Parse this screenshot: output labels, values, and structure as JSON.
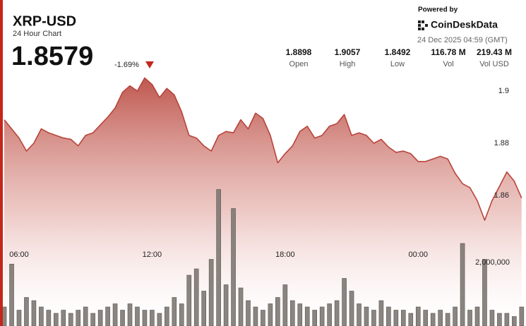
{
  "header": {
    "powered_by": "Powered by",
    "brand": "CoinDeskData",
    "timestamp": "24 Dec 2025 04:59 (GMT)",
    "price": "1.8579",
    "change": "-1.69%",
    "stats": [
      {
        "value": "1.8898",
        "label": "Open"
      },
      {
        "value": "1.9057",
        "label": "High"
      },
      {
        "value": "1.8492",
        "label": "Low"
      },
      {
        "value": "116.78 M",
        "label": "Vol"
      },
      {
        "value": "219.43 M",
        "label": "Vol USD"
      }
    ]
  },
  "chart_data": {
    "type": "line",
    "title": "XRP-USD",
    "subtitle": "24 Hour Chart",
    "x": [
      320,
      340,
      360,
      380,
      400,
      420,
      440,
      460,
      480,
      500,
      520,
      540,
      560,
      580,
      600,
      620,
      640,
      660,
      680,
      700,
      720,
      740,
      760,
      780,
      800,
      820,
      840,
      860,
      880,
      900,
      920,
      940,
      960,
      980,
      1000,
      1020,
      1040,
      1060,
      1080,
      1100,
      1120,
      1140,
      1160,
      1180,
      1200,
      1220,
      1240,
      1260,
      1280,
      1300,
      1320,
      1340,
      1360,
      1380,
      1400,
      1420,
      1440,
      1460,
      1480,
      1500,
      1520,
      1540,
      1560,
      1580,
      1600,
      1620,
      1640,
      1660,
      1680,
      1700,
      1720
    ],
    "xlim": [
      318,
      1728
    ],
    "xticks": [
      {
        "value": 360,
        "label": "06:00"
      },
      {
        "value": 720,
        "label": "12:00"
      },
      {
        "value": 1080,
        "label": "18:00"
      },
      {
        "value": 1440,
        "label": "00:00"
      }
    ],
    "ylim": [
      1.81,
      1.91
    ],
    "yticks": [
      1.86,
      1.88,
      1.9
    ],
    "y2lim": [
      0,
      4500000
    ],
    "y2ticks": [
      {
        "value": 2000000,
        "label": "2,000,000"
      }
    ],
    "series": [
      {
        "color": "#b8433a",
        "values": [
          1.889,
          1.8855,
          1.882,
          1.877,
          1.88,
          1.8855,
          1.884,
          1.883,
          1.882,
          1.8815,
          1.879,
          1.883,
          1.884,
          1.887,
          1.89,
          1.8935,
          1.8995,
          1.902,
          1.9,
          1.905,
          1.9025,
          1.8975,
          1.901,
          1.8985,
          1.892,
          1.883,
          1.882,
          1.879,
          1.877,
          1.883,
          1.8845,
          1.884,
          1.889,
          1.8855,
          1.8915,
          1.8895,
          1.883,
          1.8725,
          1.876,
          1.879,
          1.8845,
          1.8865,
          1.882,
          1.883,
          1.8865,
          1.8875,
          1.891,
          1.883,
          1.884,
          1.883,
          1.88,
          1.8815,
          1.8785,
          1.8765,
          1.877,
          1.876,
          1.873,
          1.873,
          1.874,
          1.875,
          1.874,
          1.8685,
          1.8645,
          1.863,
          1.858,
          1.8505,
          1.858,
          1.8635,
          1.869,
          1.8655,
          1.859
        ]
      },
      {
        "type": "bar",
        "axis": "y2",
        "color": "#7d7872",
        "values": [
          600000,
          1950000,
          500000,
          900000,
          800000,
          600000,
          500000,
          400000,
          500000,
          400000,
          500000,
          600000,
          400000,
          500000,
          600000,
          700000,
          500000,
          700000,
          600000,
          500000,
          500000,
          400000,
          600000,
          900000,
          700000,
          1600000,
          1800000,
          1100000,
          2100000,
          4300000,
          1300000,
          3700000,
          1200000,
          800000,
          600000,
          500000,
          700000,
          900000,
          1300000,
          800000,
          700000,
          600000,
          500000,
          600000,
          700000,
          800000,
          1500000,
          1100000,
          700000,
          600000,
          500000,
          800000,
          600000,
          500000,
          500000,
          400000,
          600000,
          500000,
          400000,
          500000,
          400000,
          600000,
          2600000,
          500000,
          600000,
          2100000,
          500000,
          400000,
          400000,
          300000,
          600000
        ]
      }
    ]
  }
}
